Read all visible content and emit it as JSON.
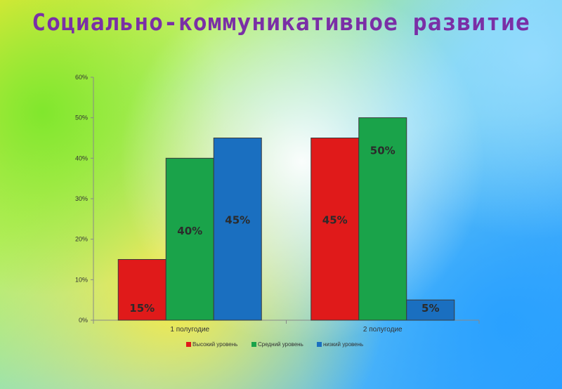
{
  "title": "Социально-коммуникативное развитие",
  "colors": {
    "title": "#7a2fa6",
    "series": [
      "#e01a1a",
      "#1aa34a",
      "#1a6fc0"
    ]
  },
  "chart_data": {
    "type": "bar",
    "categories": [
      "1 полугодие",
      "2 полугодие"
    ],
    "series": [
      {
        "name": "Высокий уровень",
        "values": [
          15,
          45
        ],
        "labels": [
          "15%",
          "45%"
        ]
      },
      {
        "name": "Средний уровень",
        "values": [
          40,
          50
        ],
        "labels": [
          "40%",
          "50%"
        ]
      },
      {
        "name": "низкий уровень",
        "values": [
          45,
          5
        ],
        "labels": [
          "45%",
          "5%"
        ]
      }
    ],
    "ylim": [
      0,
      60
    ],
    "yticks": [
      "0%",
      "10%",
      "20%",
      "30%",
      "40%",
      "50%",
      "60%"
    ],
    "grid": false,
    "legend": "bottom"
  }
}
